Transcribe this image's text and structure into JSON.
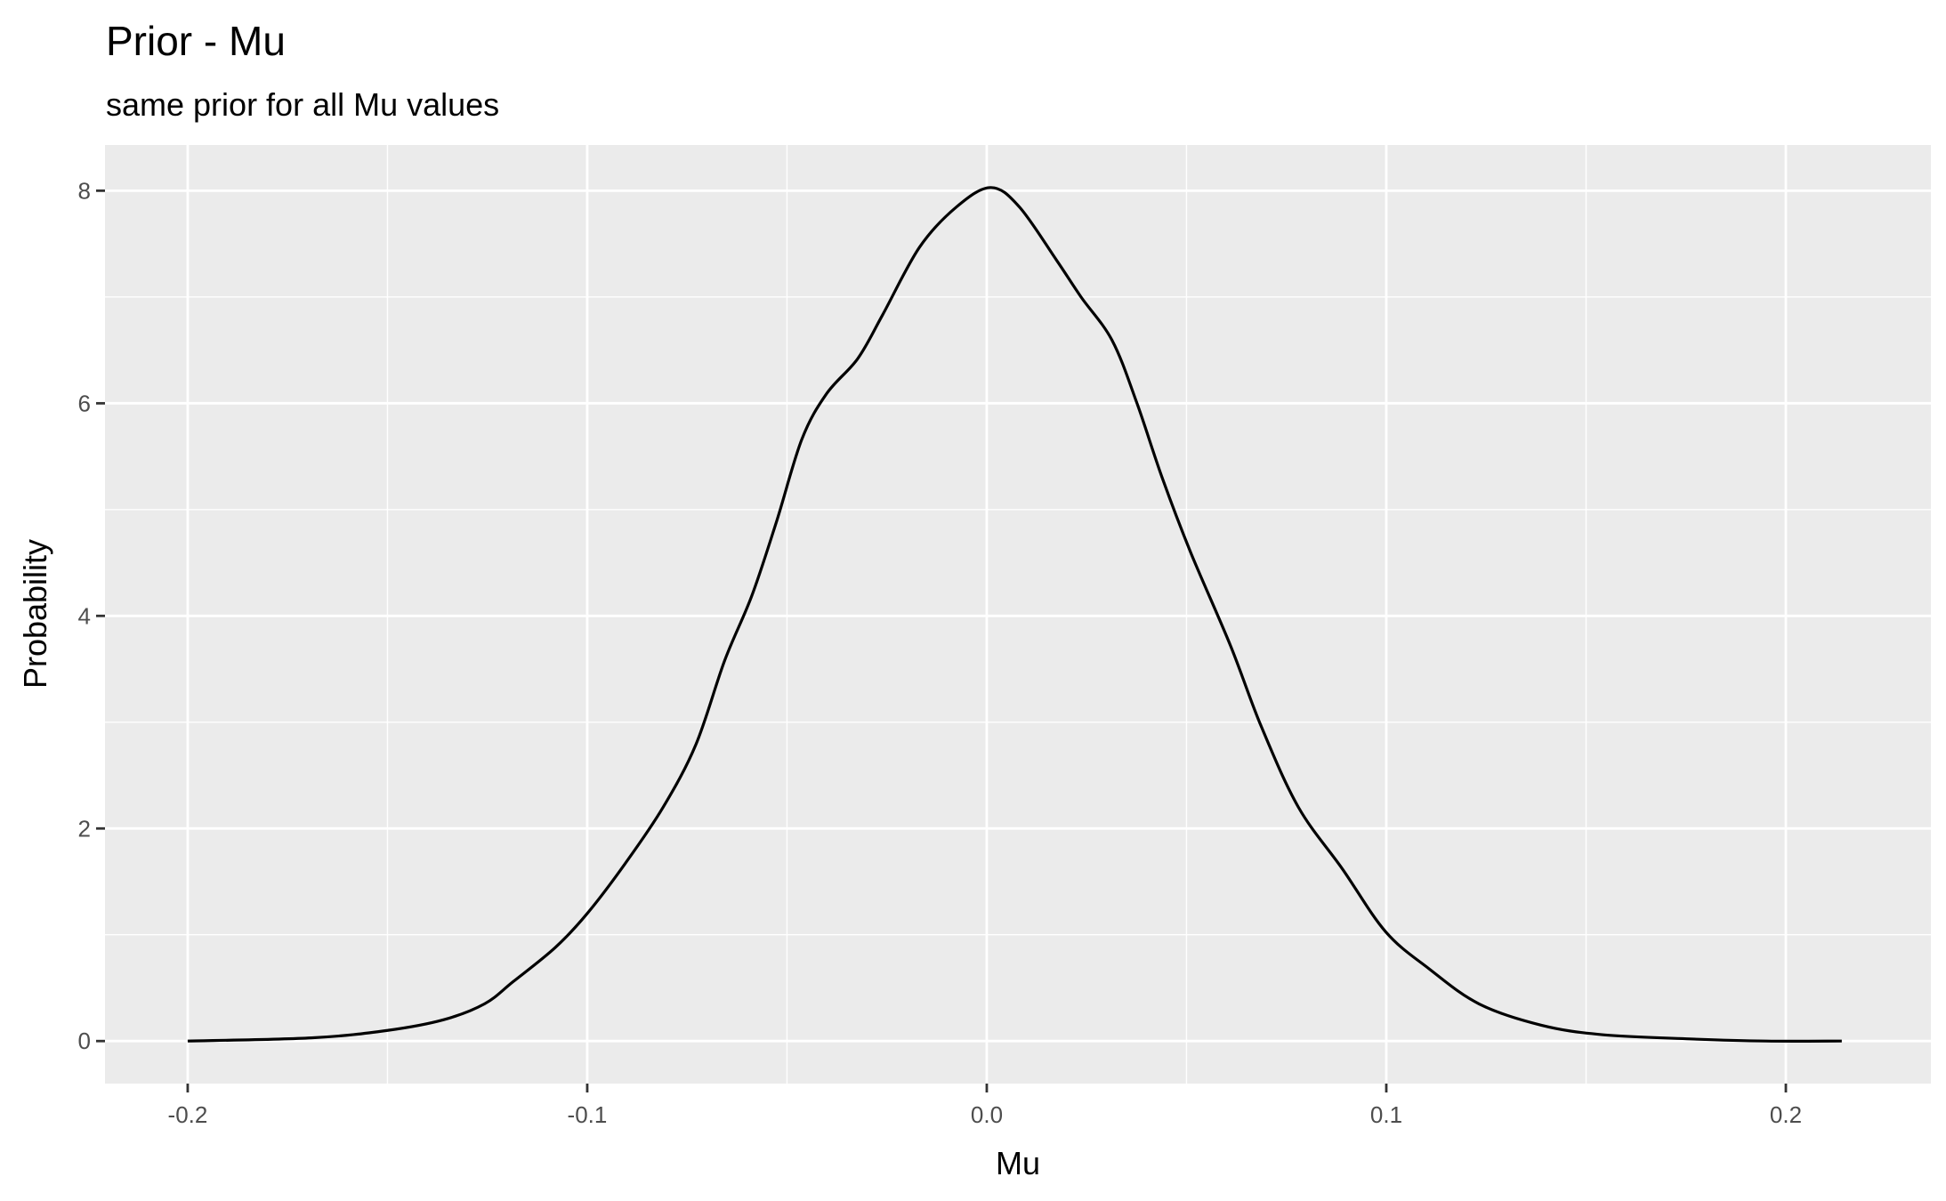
{
  "chart_data": {
    "type": "line",
    "title": "Prior - Mu",
    "subtitle": "same prior for all Mu values",
    "xlabel": "Mu",
    "ylabel": "Probability",
    "xlim": [
      -0.2207,
      0.2363
    ],
    "ylim": [
      -0.4,
      8.43
    ],
    "x_ticks": [
      -0.2,
      -0.1,
      0.0,
      0.1,
      0.2
    ],
    "x_tick_labels": [
      "-0.2",
      "-0.1",
      "0.0",
      "0.1",
      "0.2"
    ],
    "x_minor": [
      -0.15,
      -0.05,
      0.05,
      0.15
    ],
    "y_ticks": [
      0,
      2,
      4,
      6,
      8
    ],
    "y_tick_labels": [
      "0",
      "2",
      "4",
      "6",
      "8"
    ],
    "y_minor": [
      1,
      3,
      5,
      7
    ],
    "grid": true,
    "colors": {
      "panel": "#EBEBEB",
      "grid": "#FFFFFF",
      "line": "#000000",
      "tick_text": "#4D4D4D"
    },
    "series": [
      {
        "x": [
          -0.2,
          -0.169,
          -0.15,
          -0.136,
          -0.1257,
          -0.1185,
          -0.108,
          -0.1,
          -0.0905,
          -0.081,
          -0.0728,
          -0.0656,
          -0.0588,
          -0.0526,
          -0.0463,
          -0.0401,
          -0.0323,
          -0.0261,
          -0.0168,
          -0.0075,
          0.001,
          0.0081,
          0.0174,
          0.0236,
          0.0314,
          0.0376,
          0.0439,
          0.051,
          0.061,
          0.0687,
          0.078,
          0.089,
          0.0998,
          0.1107,
          0.1232,
          0.1387,
          0.154,
          0.176,
          0.195,
          0.214
        ],
        "y": [
          0,
          0.03,
          0.1,
          0.2,
          0.35,
          0.56,
          0.88,
          1.2,
          1.67,
          2.2,
          2.79,
          3.58,
          4.19,
          4.89,
          5.66,
          6.09,
          6.42,
          6.83,
          7.47,
          7.85,
          8.03,
          7.85,
          7.35,
          7.0,
          6.59,
          6.0,
          5.3,
          4.6,
          3.72,
          2.96,
          2.2,
          1.62,
          1.03,
          0.68,
          0.35,
          0.15,
          0.06,
          0.02,
          0.0,
          0
        ]
      }
    ]
  }
}
